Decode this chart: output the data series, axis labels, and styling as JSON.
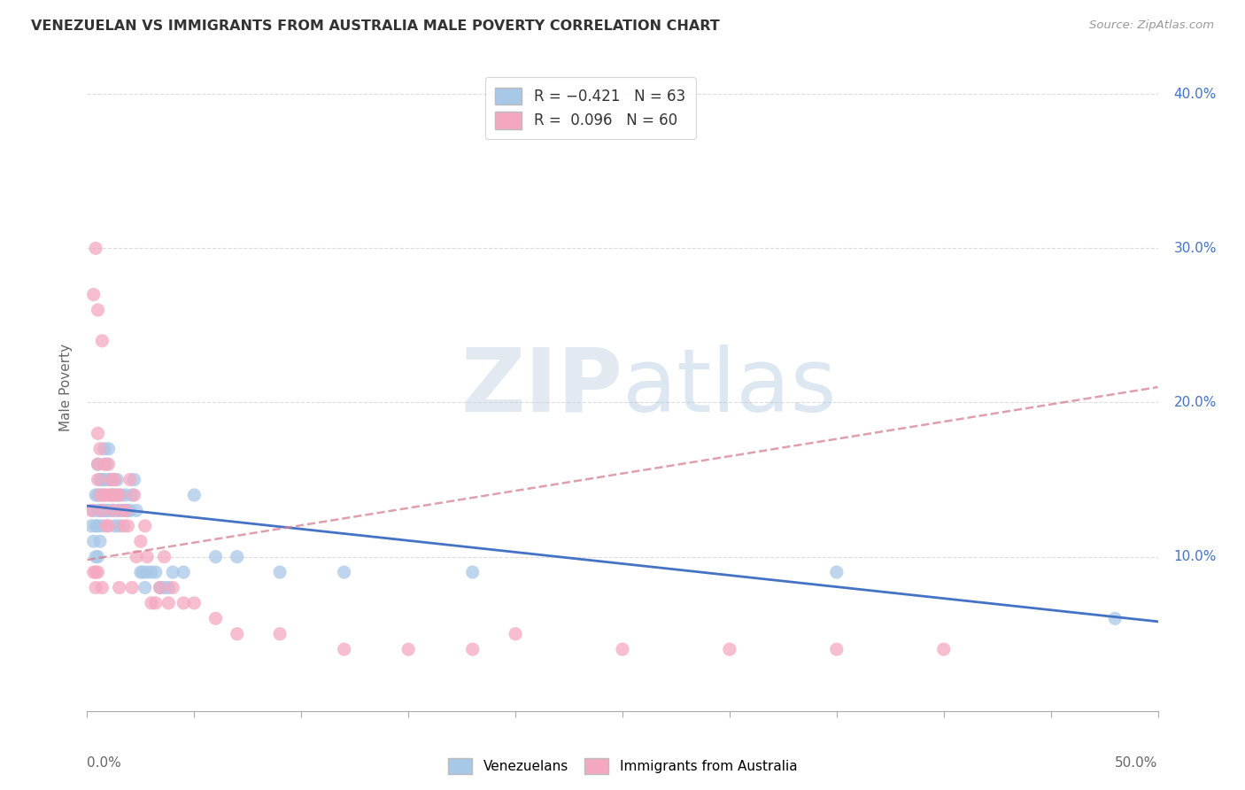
{
  "title": "VENEZUELAN VS IMMIGRANTS FROM AUSTRALIA MALE POVERTY CORRELATION CHART",
  "source": "Source: ZipAtlas.com",
  "ylabel": "Male Poverty",
  "watermark": "ZIPatlas",
  "venezuelan_color": "#a8c8e8",
  "australia_color": "#f4a8c0",
  "venezuelan_line_color": "#4472c4",
  "australia_line_color": "#d48090",
  "xlim": [
    0.0,
    0.5
  ],
  "ylim": [
    0.0,
    0.42
  ],
  "venezuelan_scatter_x": [
    0.002,
    0.003,
    0.003,
    0.004,
    0.004,
    0.004,
    0.005,
    0.005,
    0.005,
    0.005,
    0.005,
    0.006,
    0.006,
    0.006,
    0.007,
    0.007,
    0.007,
    0.007,
    0.008,
    0.008,
    0.008,
    0.009,
    0.009,
    0.01,
    0.01,
    0.01,
    0.011,
    0.011,
    0.012,
    0.012,
    0.013,
    0.013,
    0.014,
    0.014,
    0.015,
    0.015,
    0.016,
    0.017,
    0.018,
    0.019,
    0.02,
    0.021,
    0.022,
    0.023,
    0.025,
    0.026,
    0.027,
    0.028,
    0.03,
    0.032,
    0.034,
    0.036,
    0.038,
    0.04,
    0.045,
    0.05,
    0.06,
    0.07,
    0.09,
    0.12,
    0.18,
    0.35,
    0.48
  ],
  "venezuelan_scatter_y": [
    0.12,
    0.13,
    0.11,
    0.14,
    0.12,
    0.1,
    0.16,
    0.14,
    0.13,
    0.12,
    0.1,
    0.15,
    0.13,
    0.11,
    0.15,
    0.14,
    0.13,
    0.12,
    0.17,
    0.15,
    0.13,
    0.16,
    0.13,
    0.17,
    0.15,
    0.13,
    0.15,
    0.14,
    0.15,
    0.13,
    0.14,
    0.12,
    0.15,
    0.13,
    0.13,
    0.12,
    0.14,
    0.13,
    0.14,
    0.13,
    0.13,
    0.14,
    0.15,
    0.13,
    0.09,
    0.09,
    0.08,
    0.09,
    0.09,
    0.09,
    0.08,
    0.08,
    0.08,
    0.09,
    0.09,
    0.14,
    0.1,
    0.1,
    0.09,
    0.09,
    0.09,
    0.09,
    0.06
  ],
  "australia_scatter_x": [
    0.002,
    0.003,
    0.003,
    0.004,
    0.004,
    0.004,
    0.005,
    0.005,
    0.005,
    0.005,
    0.005,
    0.006,
    0.006,
    0.007,
    0.007,
    0.007,
    0.008,
    0.008,
    0.009,
    0.009,
    0.01,
    0.01,
    0.011,
    0.011,
    0.012,
    0.012,
    0.013,
    0.014,
    0.015,
    0.015,
    0.016,
    0.017,
    0.018,
    0.019,
    0.02,
    0.021,
    0.022,
    0.023,
    0.025,
    0.027,
    0.028,
    0.03,
    0.032,
    0.034,
    0.036,
    0.038,
    0.04,
    0.045,
    0.05,
    0.06,
    0.07,
    0.09,
    0.12,
    0.15,
    0.18,
    0.2,
    0.25,
    0.3,
    0.35,
    0.4
  ],
  "australia_scatter_y": [
    0.13,
    0.27,
    0.09,
    0.3,
    0.09,
    0.08,
    0.26,
    0.18,
    0.16,
    0.15,
    0.09,
    0.17,
    0.14,
    0.24,
    0.13,
    0.08,
    0.16,
    0.14,
    0.14,
    0.12,
    0.16,
    0.12,
    0.15,
    0.14,
    0.14,
    0.13,
    0.15,
    0.14,
    0.14,
    0.08,
    0.13,
    0.12,
    0.13,
    0.12,
    0.15,
    0.08,
    0.14,
    0.1,
    0.11,
    0.12,
    0.1,
    0.07,
    0.07,
    0.08,
    0.1,
    0.07,
    0.08,
    0.07,
    0.07,
    0.06,
    0.05,
    0.05,
    0.04,
    0.04,
    0.04,
    0.05,
    0.04,
    0.04,
    0.04,
    0.04
  ],
  "ven_trend_x": [
    0.0,
    0.5
  ],
  "ven_trend_y": [
    0.133,
    0.058
  ],
  "aus_trend_x": [
    0.0,
    0.5
  ],
  "aus_trend_y": [
    0.098,
    0.21
  ]
}
